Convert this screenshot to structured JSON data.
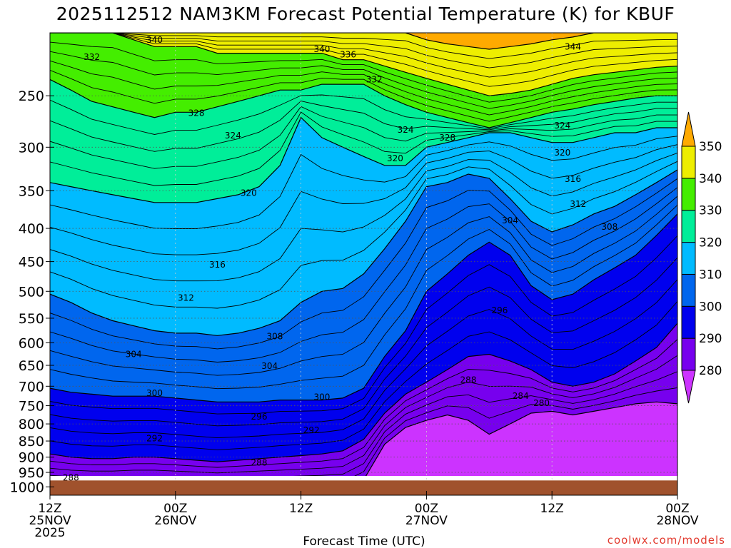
{
  "chart_data": {
    "type": "contour",
    "title": "2025112512 NAM3KM Forecast Potential Temperature (K) for KBUF",
    "xlabel": "Forecast Time (UTC)",
    "ylabel": "",
    "credit": "coolwx.com/models",
    "y_axis": {
      "scale": "log-pressure",
      "range": [
        1030,
        200
      ],
      "ticks": [
        "250",
        "300",
        "350",
        "400",
        "450",
        "500",
        "550",
        "600",
        "650",
        "700",
        "750",
        "800",
        "850",
        "900",
        "950",
        "1000"
      ]
    },
    "x_axis": {
      "range_hours": [
        0,
        60
      ],
      "ticks": [
        {
          "lines": [
            "12Z",
            "25NOV",
            "2025"
          ],
          "hour": 0
        },
        {
          "lines": [
            "00Z",
            "26NOV"
          ],
          "hour": 12
        },
        {
          "lines": [
            "12Z",
            ""
          ],
          "hour": 24
        },
        {
          "lines": [
            "00Z",
            "27NOV"
          ],
          "hour": 36
        },
        {
          "lines": [
            "12Z",
            ""
          ],
          "hour": 48
        },
        {
          "lines": [
            "00Z",
            "28NOV"
          ],
          "hour": 60
        }
      ]
    },
    "colorbar": {
      "labels": [
        "350",
        "340",
        "330",
        "320",
        "310",
        "300",
        "290",
        "280"
      ],
      "levels": [
        280,
        290,
        300,
        310,
        320,
        330,
        340,
        350
      ],
      "colors": [
        "#cc33ff",
        "#7700ee",
        "#0000ee",
        "#0066ee",
        "#00bbff",
        "#00ee99",
        "#44ee00",
        "#eeee00",
        "#ffaa00"
      ]
    },
    "ground_color": "#a0522d",
    "contour_interval_K": 2,
    "profile_hours": [
      0,
      2,
      4,
      6,
      8,
      10,
      12,
      14,
      16,
      18,
      20,
      22,
      24,
      26,
      28,
      30,
      32,
      34,
      36,
      38,
      40,
      42,
      44,
      46,
      48,
      50,
      52,
      54,
      56,
      58,
      60
    ],
    "isentropes": [
      {
        "theta": 280,
        "pressure_hPa": [
          1010,
          1010,
          1010,
          1010,
          1010,
          1010,
          1010,
          1010,
          1010,
          1010,
          1010,
          1010,
          1010,
          1010,
          1010,
          975,
          860,
          810,
          790,
          775,
          790,
          830,
          800,
          770,
          765,
          775,
          765,
          755,
          745,
          740,
          745
        ]
      },
      {
        "theta": 290,
        "pressure_hPa": [
          890,
          900,
          905,
          905,
          900,
          900,
          905,
          910,
          915,
          910,
          905,
          900,
          895,
          890,
          880,
          845,
          770,
          720,
          690,
          660,
          630,
          625,
          640,
          660,
          690,
          700,
          690,
          670,
          640,
          610,
          560
        ]
      },
      {
        "theta": 300,
        "pressure_hPa": [
          705,
          715,
          720,
          725,
          725,
          725,
          730,
          735,
          740,
          740,
          740,
          735,
          735,
          735,
          730,
          705,
          630,
          575,
          500,
          470,
          440,
          420,
          440,
          490,
          515,
          505,
          480,
          460,
          440,
          410,
          380
        ]
      },
      {
        "theta": 310,
        "pressure_hPa": [
          505,
          520,
          540,
          555,
          565,
          575,
          580,
          580,
          585,
          580,
          570,
          555,
          520,
          500,
          495,
          470,
          430,
          390,
          345,
          340,
          330,
          335,
          360,
          390,
          405,
          395,
          380,
          370,
          355,
          340,
          325
        ]
      },
      {
        "theta": 320,
        "pressure_hPa": [
          340,
          345,
          350,
          355,
          360,
          365,
          365,
          365,
          360,
          355,
          345,
          320,
          270,
          290,
          300,
          310,
          320,
          320,
          300,
          295,
          290,
          285,
          285,
          290,
          295,
          295,
          290,
          285,
          285,
          280,
          280
        ]
      },
      {
        "theta": 330,
        "pressure_hPa": [
          236,
          245,
          255,
          260,
          265,
          270,
          265,
          265,
          260,
          255,
          250,
          245,
          245,
          240,
          240,
          240,
          250,
          258,
          265,
          270,
          275,
          280,
          275,
          270,
          265,
          262,
          258,
          255,
          252,
          250,
          250
        ]
      },
      {
        "theta": 340,
        "pressure_hPa": [
          200,
          200,
          200,
          200,
          205,
          210,
          210,
          210,
          215,
          215,
          215,
          215,
          215,
          215,
          220,
          220,
          225,
          230,
          235,
          240,
          245,
          250,
          248,
          245,
          240,
          235,
          232,
          230,
          228,
          226,
          225
        ]
      },
      {
        "theta": 350,
        "pressure_hPa": [
          200,
          200,
          200,
          200,
          200,
          200,
          200,
          200,
          200,
          200,
          200,
          200,
          200,
          200,
          200,
          200,
          200,
          200,
          205,
          208,
          210,
          212,
          210,
          208,
          205,
          203,
          200,
          200,
          200,
          200,
          200
        ]
      }
    ],
    "contour_labels": [
      {
        "text": "340",
        "hour": 10.0,
        "p": 205
      },
      {
        "text": "332",
        "hour": 4.0,
        "p": 218
      },
      {
        "text": "340",
        "hour": 26.0,
        "p": 212
      },
      {
        "text": "336",
        "hour": 28.5,
        "p": 216
      },
      {
        "text": "344",
        "hour": 50.0,
        "p": 210
      },
      {
        "text": "332",
        "hour": 31.0,
        "p": 236
      },
      {
        "text": "328",
        "hour": 14.0,
        "p": 266
      },
      {
        "text": "324",
        "hour": 34.0,
        "p": 282
      },
      {
        "text": "328",
        "hour": 38.0,
        "p": 290
      },
      {
        "text": "324",
        "hour": 49.0,
        "p": 278
      },
      {
        "text": "324",
        "hour": 17.5,
        "p": 288
      },
      {
        "text": "320",
        "hour": 33.0,
        "p": 312
      },
      {
        "text": "320",
        "hour": 49.0,
        "p": 306
      },
      {
        "text": "316",
        "hour": 50.0,
        "p": 336
      },
      {
        "text": "320",
        "hour": 19.0,
        "p": 353
      },
      {
        "text": "312",
        "hour": 50.5,
        "p": 367
      },
      {
        "text": "304",
        "hour": 44.0,
        "p": 389
      },
      {
        "text": "308",
        "hour": 53.5,
        "p": 398
      },
      {
        "text": "316",
        "hour": 16.0,
        "p": 455
      },
      {
        "text": "312",
        "hour": 13.0,
        "p": 512
      },
      {
        "text": "296",
        "hour": 43.0,
        "p": 535
      },
      {
        "text": "308",
        "hour": 21.5,
        "p": 587
      },
      {
        "text": "304",
        "hour": 8.0,
        "p": 625
      },
      {
        "text": "304",
        "hour": 21.0,
        "p": 652
      },
      {
        "text": "288",
        "hour": 40.0,
        "p": 685
      },
      {
        "text": "300",
        "hour": 10.0,
        "p": 717
      },
      {
        "text": "300",
        "hour": 26.0,
        "p": 727
      },
      {
        "text": "284",
        "hour": 45.0,
        "p": 725
      },
      {
        "text": "280",
        "hour": 47.0,
        "p": 743
      },
      {
        "text": "296",
        "hour": 20.0,
        "p": 780
      },
      {
        "text": "292",
        "hour": 10.0,
        "p": 842
      },
      {
        "text": "292",
        "hour": 25.0,
        "p": 818
      },
      {
        "text": "288",
        "hour": 20.0,
        "p": 918
      },
      {
        "text": "288",
        "hour": 2.0,
        "p": 968
      }
    ]
  }
}
